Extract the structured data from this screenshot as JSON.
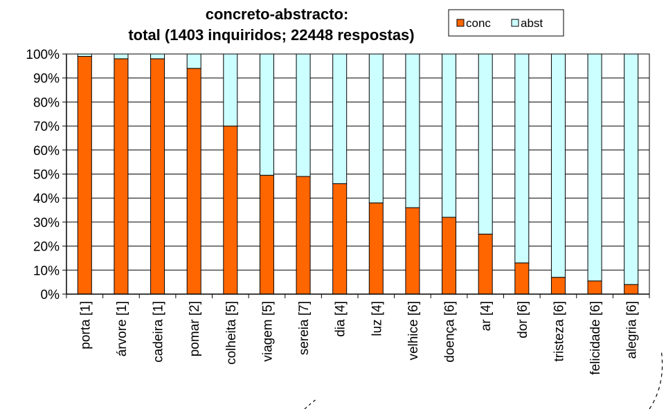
{
  "chart_data": {
    "type": "bar",
    "stacked": true,
    "percent": true,
    "title": [
      "concreto-abstracto:",
      "total (1403 inquiridos; 22448 respostas)"
    ],
    "categories": [
      "porta [1]",
      "árvore [1]",
      "cadeira [1]",
      "pomar [2]",
      "colheita [5]",
      "viagem [5]",
      "sereia [7]",
      "dia [4]",
      "luz [4]",
      "velhice [6]",
      "doença [6]",
      "ar [4]",
      "dor [6]",
      "tristeza [6]",
      "felicidade [6]",
      "alegria [6]"
    ],
    "series": [
      {
        "name": "conc",
        "color": "#FF6600",
        "values": [
          99,
          98,
          98,
          94,
          70,
          49.5,
          49,
          46,
          38,
          36,
          32,
          25,
          13,
          7,
          5.5,
          4
        ]
      },
      {
        "name": "abst",
        "color": "#CCFFFF",
        "values": [
          1,
          2,
          2,
          6,
          30,
          50.5,
          51,
          54,
          62,
          64,
          68,
          75,
          87,
          93,
          94.5,
          96
        ]
      }
    ],
    "yticks": [
      "0%",
      "10%",
      "20%",
      "30%",
      "40%",
      "50%",
      "60%",
      "70%",
      "80%",
      "90%",
      "100%"
    ],
    "ylim": [
      0,
      100
    ],
    "grid": true,
    "legend_position": "top-right"
  }
}
